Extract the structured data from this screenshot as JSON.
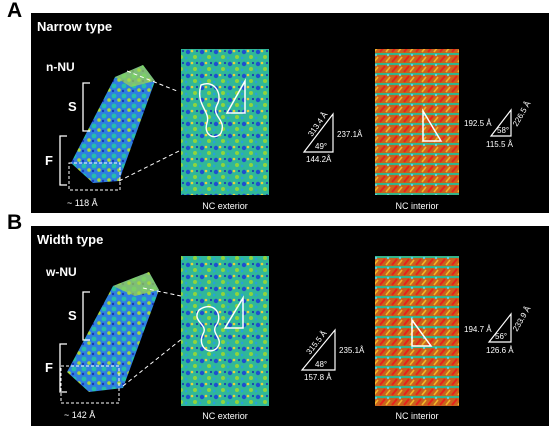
{
  "figure": {
    "panels": [
      {
        "letter": "A",
        "title": "Narrow type",
        "unit_label": "n-NU",
        "s_label": "S",
        "f_label": "F",
        "width_label": "~ 118 Å",
        "exterior_label": "NC exterior",
        "interior_label": "NC interior",
        "exterior_triangle": {
          "hyp": "313.4 Å",
          "angle": "49°",
          "base": "144.2Å",
          "side": "237.1Å"
        },
        "interior_triangle": {
          "hyp": "226.5 Å",
          "angle": "58°",
          "base": "115.5 Å",
          "side": "192.5 Å"
        }
      },
      {
        "letter": "B",
        "title": "Width type",
        "unit_label": "w-NU",
        "s_label": "S",
        "f_label": "F",
        "width_label": "~ 142 Å",
        "exterior_label": "NC exterior",
        "interior_label": "NC interior",
        "exterior_triangle": {
          "hyp": "315.5 Å",
          "angle": "48°",
          "base": "157.8 Å",
          "side": "235.1Å"
        },
        "interior_triangle": {
          "hyp": "233.9 Å",
          "angle": "56°",
          "base": "126.6 Å",
          "side": "194.7 Å"
        }
      }
    ],
    "colors": {
      "background": "#000000",
      "exterior_base": "#2fb79a",
      "interior_base": "#c9631d",
      "unit_base": "#2f7fe0"
    }
  }
}
